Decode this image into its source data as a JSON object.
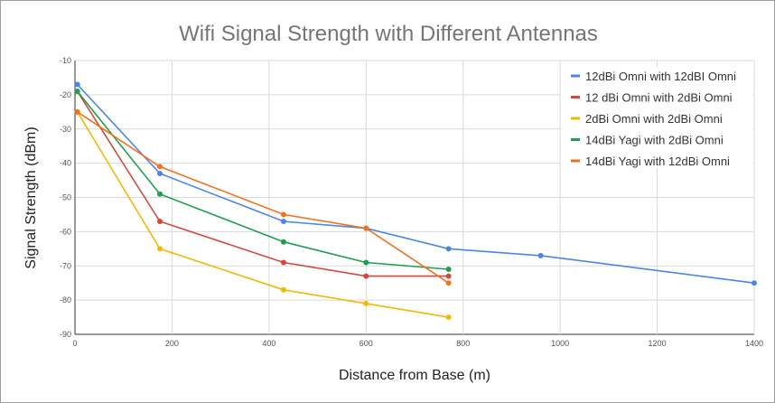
{
  "chart_data": {
    "type": "line",
    "title": "Wifi Signal Strength with Different Antennas",
    "xlabel": "Distance from Base (m)",
    "ylabel": "Signal Strength (dBm)",
    "xlim": [
      0,
      1400
    ],
    "ylim": [
      -90,
      -10
    ],
    "x_ticks": [
      0,
      200,
      400,
      600,
      800,
      1000,
      1200,
      1400
    ],
    "y_ticks": [
      -10,
      -20,
      -30,
      -40,
      -50,
      -60,
      -70,
      -80,
      -90
    ],
    "grid": true,
    "legend_position": "top-right",
    "series": [
      {
        "name": "12dBi Omni with 12dBI Omni",
        "color": "#4a86e8",
        "points": [
          [
            5,
            -17
          ],
          [
            175,
            -43
          ],
          [
            430,
            -57
          ],
          [
            600,
            -59
          ],
          [
            770,
            -65
          ],
          [
            960,
            -67
          ],
          [
            1400,
            -75
          ]
        ]
      },
      {
        "name": "12 dBi Omni with 2dBi Omni",
        "color": "#d04a3c",
        "points": [
          [
            5,
            -19
          ],
          [
            175,
            -57
          ],
          [
            430,
            -69
          ],
          [
            600,
            -73
          ],
          [
            770,
            -73
          ]
        ]
      },
      {
        "name": "2dBi Omni with 2dBi Omni",
        "color": "#f5b800",
        "points": [
          [
            5,
            -25
          ],
          [
            175,
            -65
          ],
          [
            430,
            -77
          ],
          [
            600,
            -81
          ],
          [
            770,
            -85
          ]
        ]
      },
      {
        "name": "14dBi Yagi with 2dBi Omni",
        "color": "#1e9e4f",
        "points": [
          [
            5,
            -19
          ],
          [
            175,
            -49
          ],
          [
            430,
            -63
          ],
          [
            600,
            -69
          ],
          [
            770,
            -71
          ]
        ]
      },
      {
        "name": "14dBi Yagi with 12dBi Omni",
        "color": "#f2711c",
        "points": [
          [
            5,
            -25
          ],
          [
            175,
            -41
          ],
          [
            430,
            -55
          ],
          [
            600,
            -59
          ],
          [
            770,
            -75
          ]
        ]
      }
    ]
  }
}
